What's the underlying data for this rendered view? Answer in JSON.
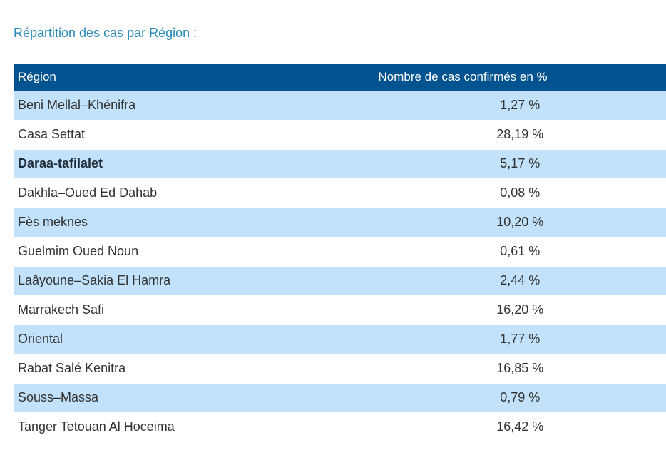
{
  "heading": "Répartition des cas par Région :",
  "table": {
    "headers": [
      "Région",
      "Nombre de cas confirmés en %"
    ],
    "rows": [
      {
        "region": "Beni Mellal–Khénifra",
        "value": "1,27 %"
      },
      {
        "region": "Casa Settat",
        "value": "28,19 %"
      },
      {
        "region": "Daraa-tafilalet",
        "value": "5,17 %"
      },
      {
        "region": "Dakhla–Oued Ed Dahab",
        "value": "0,08 %"
      },
      {
        "region": "Fès meknes",
        "value": "10,20 %"
      },
      {
        "region": "Guelmim Oued Noun",
        "value": "0,61 %"
      },
      {
        "region": "Laâyoune–Sakia El Hamra",
        "value": "2,44 %"
      },
      {
        "region": "Marrakech Safi",
        "value": "16,20 %"
      },
      {
        "region": "Oriental",
        "value": "1,77 %"
      },
      {
        "region": "Rabat Salé Kenitra",
        "value": "16,85 %"
      },
      {
        "region": "Souss–Massa",
        "value": "0,79 %"
      },
      {
        "region": "Tanger Tetouan Al Hoceima",
        "value": "16,42 %"
      }
    ]
  },
  "colors": {
    "heading": "#2a8ab8",
    "header_bg": "#02538f",
    "row_alt_bg": "#c2e2fb"
  }
}
